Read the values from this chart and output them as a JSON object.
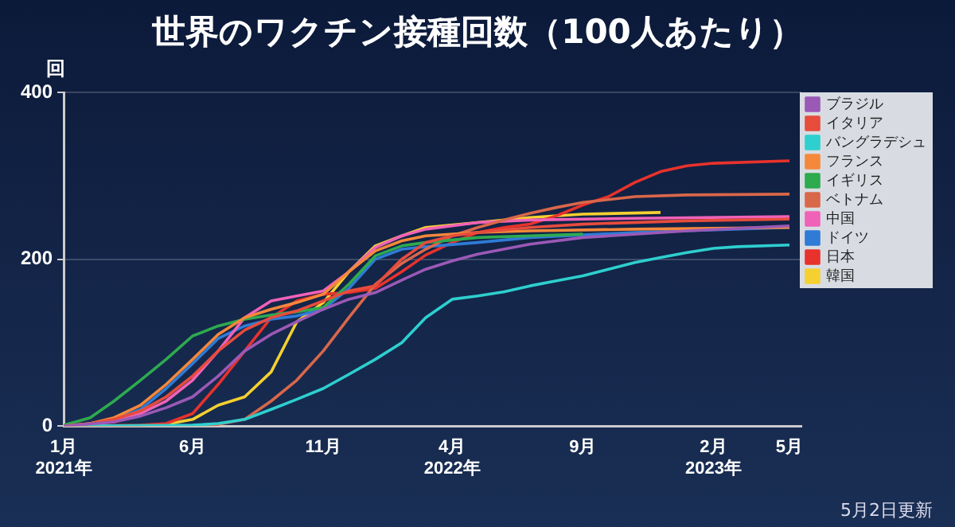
{
  "chart_data": {
    "type": "line",
    "title": "世界のワクチン接種回数（100人あたり）",
    "ylabel": "回",
    "xlim": [
      "2021-01",
      "2023-05-15"
    ],
    "xticks": [
      {
        "value": "2021-01",
        "label": "1月\n2021年"
      },
      {
        "value": "2021-06",
        "label": "6月"
      },
      {
        "value": "2021-11",
        "label": "11月"
      },
      {
        "value": "2022-04",
        "label": "4月\n2022年"
      },
      {
        "value": "2022-09",
        "label": "9月"
      },
      {
        "value": "2023-02",
        "label": "2月\n2023年"
      },
      {
        "value": "2023-05",
        "label": "5月"
      }
    ],
    "ylim": [
      0,
      400
    ],
    "yticks": [
      0,
      200,
      400
    ],
    "grid": "y",
    "legend": "right",
    "marker": "none",
    "line_style": "solid",
    "series": [
      {
        "name": "ブラジル",
        "color": "#9b59b6",
        "x": [
          "2021-01",
          "2021-03",
          "2021-04",
          "2021-05",
          "2021-06",
          "2021-07",
          "2021-08",
          "2021-09",
          "2021-10",
          "2021-11",
          "2021-12",
          "2022-01",
          "2022-02",
          "2022-03",
          "2022-04",
          "2022-05",
          "2022-07",
          "2022-09",
          "2023-01",
          "2023-05"
        ],
        "values": [
          0,
          5,
          12,
          22,
          35,
          60,
          90,
          110,
          125,
          140,
          152,
          160,
          175,
          188,
          198,
          206,
          218,
          226,
          234,
          240
        ]
      },
      {
        "name": "イタリア",
        "color": "#e74c3c",
        "x": [
          "2021-01",
          "2021-02",
          "2021-03",
          "2021-04",
          "2021-05",
          "2021-06",
          "2021-07",
          "2021-08",
          "2021-09",
          "2021-10",
          "2021-11",
          "2021-12",
          "2022-01",
          "2022-02",
          "2022-03",
          "2022-04",
          "2022-05",
          "2022-07",
          "2022-09",
          "2023-01",
          "2023-05"
        ],
        "values": [
          0,
          3,
          8,
          18,
          35,
          60,
          90,
          115,
          130,
          138,
          150,
          162,
          168,
          200,
          220,
          228,
          232,
          238,
          242,
          246,
          248
        ]
      },
      {
        "name": "バングラデシュ",
        "color": "#2ecfcf",
        "x": [
          "2021-01",
          "2021-06",
          "2021-07",
          "2021-08",
          "2021-09",
          "2021-10",
          "2021-11",
          "2021-12",
          "2022-01",
          "2022-02",
          "2022-03",
          "2022-04",
          "2022-05",
          "2022-06",
          "2022-07",
          "2022-08",
          "2022-09",
          "2022-10",
          "2022-11",
          "2022-12",
          "2023-01",
          "2023-02",
          "2023-03",
          "2023-05"
        ],
        "values": [
          0,
          1,
          3,
          8,
          20,
          32,
          45,
          62,
          80,
          100,
          130,
          152,
          156,
          161,
          168,
          174,
          180,
          188,
          196,
          202,
          208,
          213,
          215,
          217
        ]
      },
      {
        "name": "フランス",
        "color": "#f5883a",
        "x": [
          "2021-01",
          "2021-02",
          "2021-03",
          "2021-04",
          "2021-05",
          "2021-06",
          "2021-07",
          "2021-08",
          "2021-09",
          "2021-10",
          "2021-11",
          "2021-12",
          "2022-01",
          "2022-02",
          "2022-03",
          "2022-05",
          "2022-07",
          "2022-11",
          "2023-05"
        ],
        "values": [
          0,
          3,
          10,
          25,
          50,
          80,
          110,
          130,
          140,
          148,
          158,
          185,
          210,
          222,
          228,
          232,
          234,
          236,
          238
        ]
      },
      {
        "name": "イギリス",
        "color": "#2eaa4f",
        "x": [
          "2021-01",
          "2021-02",
          "2021-03",
          "2021-04",
          "2021-05",
          "2021-06",
          "2021-07",
          "2021-08",
          "2021-09",
          "2021-10",
          "2021-11",
          "2021-12",
          "2022-01",
          "2022-02",
          "2022-03",
          "2022-05",
          "2022-07",
          "2022-09"
        ],
        "values": [
          1,
          10,
          30,
          55,
          80,
          108,
          120,
          128,
          133,
          137,
          142,
          170,
          204,
          216,
          220,
          226,
          228,
          230
        ]
      },
      {
        "name": "ベトナム",
        "color": "#d9674a",
        "x": [
          "2021-01",
          "2021-06",
          "2021-07",
          "2021-08",
          "2021-09",
          "2021-10",
          "2021-11",
          "2021-12",
          "2022-01",
          "2022-02",
          "2022-03",
          "2022-04",
          "2022-05",
          "2022-06",
          "2022-07",
          "2022-08",
          "2022-09",
          "2022-11",
          "2023-01",
          "2023-05"
        ],
        "values": [
          0,
          0,
          2,
          8,
          30,
          55,
          90,
          130,
          170,
          195,
          212,
          228,
          238,
          247,
          255,
          262,
          268,
          275,
          277,
          278
        ]
      },
      {
        "name": "中国",
        "color": "#f062b8",
        "x": [
          "2021-01",
          "2021-03",
          "2021-04",
          "2021-05",
          "2021-06",
          "2021-07",
          "2021-08",
          "2021-09",
          "2021-10",
          "2021-11",
          "2021-12",
          "2022-01",
          "2022-02",
          "2022-03",
          "2022-05",
          "2022-07",
          "2022-11",
          "2023-05"
        ],
        "values": [
          0,
          5,
          15,
          30,
          55,
          90,
          130,
          150,
          156,
          162,
          185,
          214,
          228,
          236,
          244,
          247,
          249,
          251
        ]
      },
      {
        "name": "ドイツ",
        "color": "#2f7bd6",
        "x": [
          "2021-01",
          "2021-02",
          "2021-03",
          "2021-04",
          "2021-05",
          "2021-06",
          "2021-07",
          "2021-08",
          "2021-09",
          "2021-10",
          "2021-11",
          "2021-12",
          "2022-01",
          "2022-02",
          "2022-03",
          "2022-05",
          "2022-07",
          "2022-11",
          "2023-05"
        ],
        "values": [
          0,
          3,
          8,
          20,
          45,
          75,
          105,
          120,
          128,
          132,
          140,
          165,
          200,
          212,
          215,
          220,
          226,
          232,
          238
        ]
      },
      {
        "name": "日本",
        "color": "#e8322c",
        "x": [
          "2021-01",
          "2021-04",
          "2021-05",
          "2021-06",
          "2021-07",
          "2021-08",
          "2021-09",
          "2021-10",
          "2021-11",
          "2021-12",
          "2022-01",
          "2022-02",
          "2022-03",
          "2022-04",
          "2022-05",
          "2022-06",
          "2022-07",
          "2022-08",
          "2022-09",
          "2022-10",
          "2022-11",
          "2022-12",
          "2023-01",
          "2023-02",
          "2023-05"
        ],
        "values": [
          0,
          1,
          3,
          15,
          50,
          90,
          130,
          150,
          158,
          160,
          165,
          185,
          205,
          220,
          232,
          238,
          242,
          252,
          265,
          275,
          292,
          305,
          312,
          315,
          318
        ]
      },
      {
        "name": "韓国",
        "color": "#f5d030",
        "x": [
          "2021-01",
          "2021-04",
          "2021-05",
          "2021-06",
          "2021-07",
          "2021-08",
          "2021-09",
          "2021-10",
          "2021-11",
          "2021-12",
          "2022-01",
          "2022-02",
          "2022-03",
          "2022-05",
          "2022-07",
          "2022-09",
          "2022-12"
        ],
        "values": [
          0,
          0,
          2,
          8,
          25,
          35,
          65,
          125,
          148,
          185,
          216,
          228,
          238,
          244,
          250,
          254,
          256
        ]
      }
    ],
    "annotations": [
      "5月2日更新"
    ]
  }
}
